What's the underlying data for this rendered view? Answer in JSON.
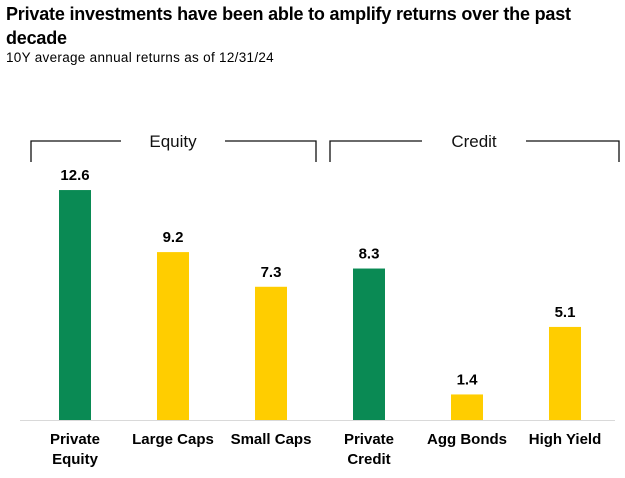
{
  "chart_data": {
    "type": "bar",
    "title": "Private investments have been able to amplify returns over the past decade",
    "subtitle": "10Y average annual returns as of 12/31/24",
    "xlabel": "",
    "ylabel": "",
    "ylim": [
      0,
      13
    ],
    "grid": false,
    "categories": [
      "Private Equity",
      "Large Caps",
      "Small Caps",
      "Private Credit",
      "Agg Bonds",
      "High Yield"
    ],
    "category_lines": [
      [
        "Private",
        "Equity"
      ],
      [
        "Large Caps"
      ],
      [
        "Small Caps"
      ],
      [
        "Private",
        "Credit"
      ],
      [
        "Agg Bonds"
      ],
      [
        "High Yield"
      ]
    ],
    "values": [
      12.6,
      9.2,
      7.3,
      8.3,
      1.4,
      5.1
    ],
    "value_labels": [
      "12.6",
      "9.2",
      "7.3",
      "8.3",
      "1.4",
      "5.1"
    ],
    "bar_colors": [
      "#0a8a54",
      "#ffcd00",
      "#ffcd00",
      "#0a8a54",
      "#ffcd00",
      "#ffcd00"
    ],
    "groups": [
      {
        "label": "Equity",
        "categories": [
          "Private Equity",
          "Large Caps",
          "Small Caps"
        ]
      },
      {
        "label": "Credit",
        "categories": [
          "Private Credit",
          "Agg Bonds",
          "High Yield"
        ]
      }
    ],
    "colors": {
      "private": "#0a8a54",
      "public": "#ffcd00"
    }
  }
}
